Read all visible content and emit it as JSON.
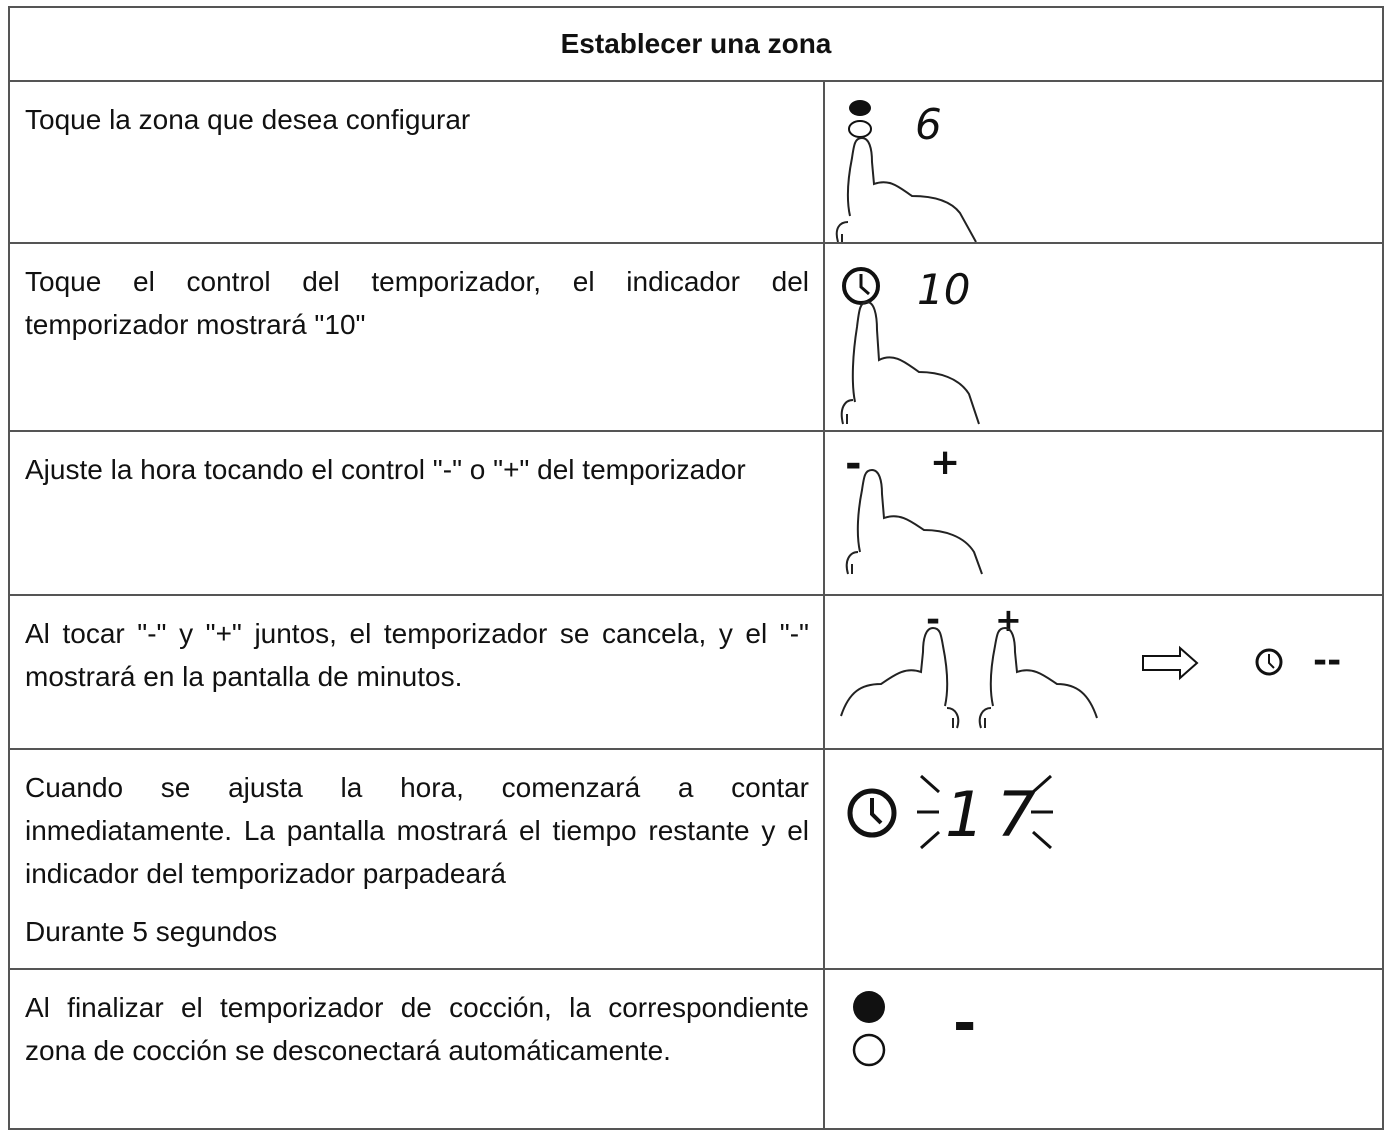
{
  "header": {
    "title": "Establecer una zona"
  },
  "rows": [
    {
      "text": [
        "Toque la zona que desea configurar"
      ],
      "display": [
        "6"
      ]
    },
    {
      "text": [
        "Toque el control del temporizador, el indicador del temporizador mostrará \"10\""
      ],
      "display": [
        "10"
      ]
    },
    {
      "text": [
        "Ajuste la hora tocando el control \"-\" o \"+\" del temporizador"
      ],
      "display": [
        "-",
        "+"
      ]
    },
    {
      "text": [
        "Al tocar \"-\" y \"+\" juntos, el temporizador se cancela, y el \"-\" mostrará en la pantalla de minutos."
      ],
      "display": [
        "-",
        "+",
        "--"
      ]
    },
    {
      "text": [
        "Cuando se ajusta la hora, comenzará a contar inmediatamente. La pantalla mostrará el tiempo restante y el indicador del temporizador parpadeará",
        "Durante 5 segundos"
      ],
      "display": [
        "17"
      ]
    },
    {
      "text": [
        "Al finalizar el temporizador de cocción, la correspondiente zona de cocción se desconectará automáticamente."
      ],
      "display": [
        "-"
      ]
    }
  ]
}
